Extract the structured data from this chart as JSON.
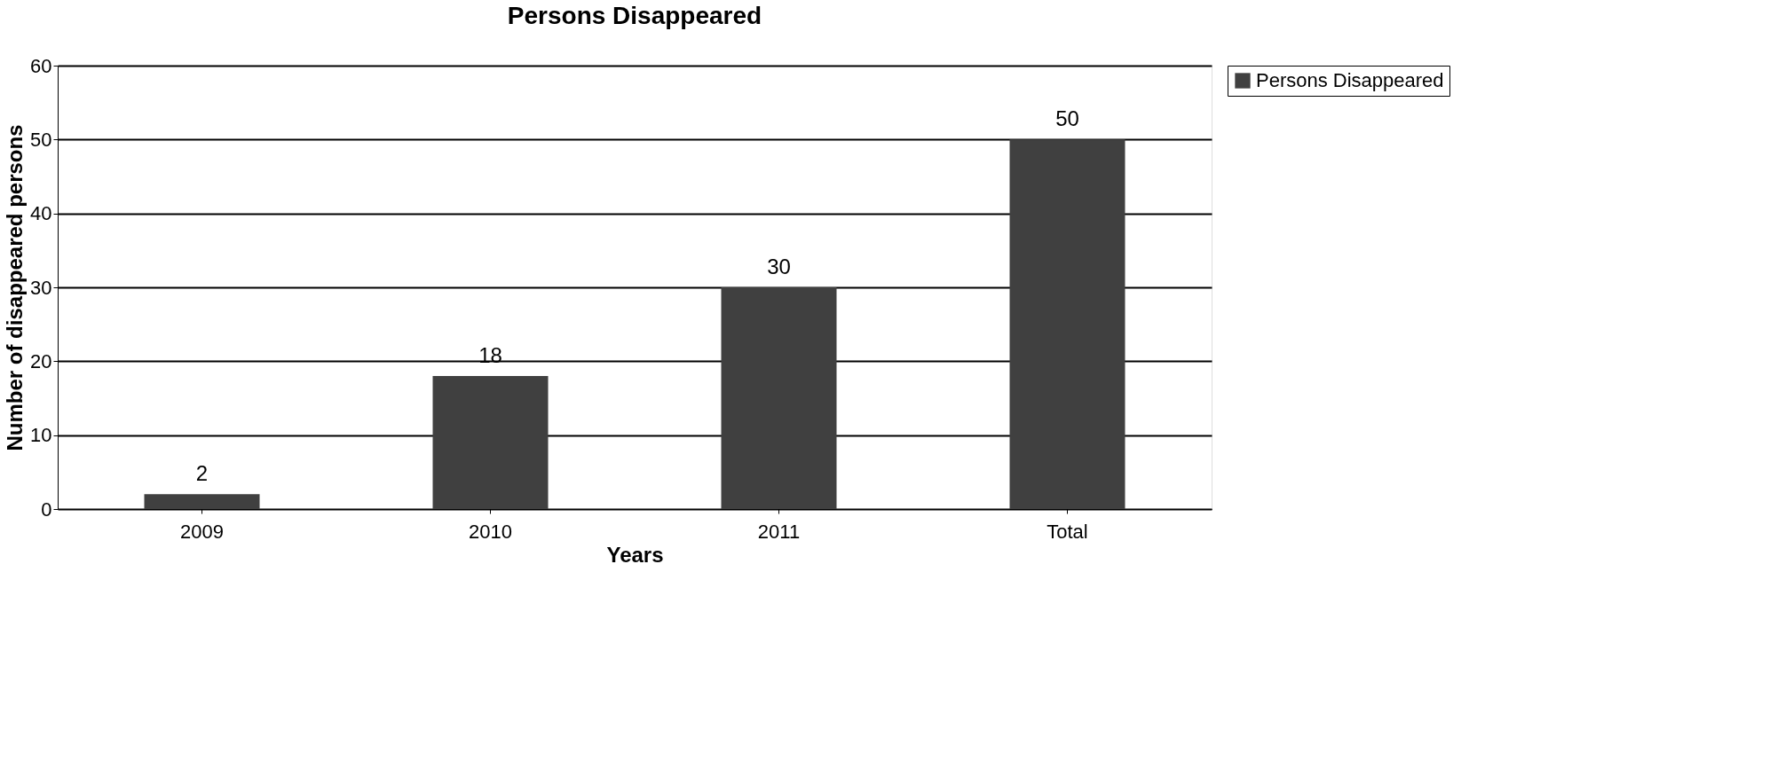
{
  "chart_data": {
    "type": "bar",
    "title": "Persons Disappeared",
    "xlabel": "Years",
    "ylabel": "Number of disappeared persons",
    "categories": [
      "2009",
      "2010",
      "2011",
      "Total"
    ],
    "series": [
      {
        "name": "Persons Disappeared",
        "color": "#404040",
        "values": [
          2,
          18,
          30,
          50
        ]
      }
    ],
    "ylim": [
      0,
      60
    ],
    "yticks": [
      0,
      10,
      20,
      30,
      40,
      50,
      60
    ],
    "grid": "y",
    "legend": "right",
    "data_labels": true
  }
}
